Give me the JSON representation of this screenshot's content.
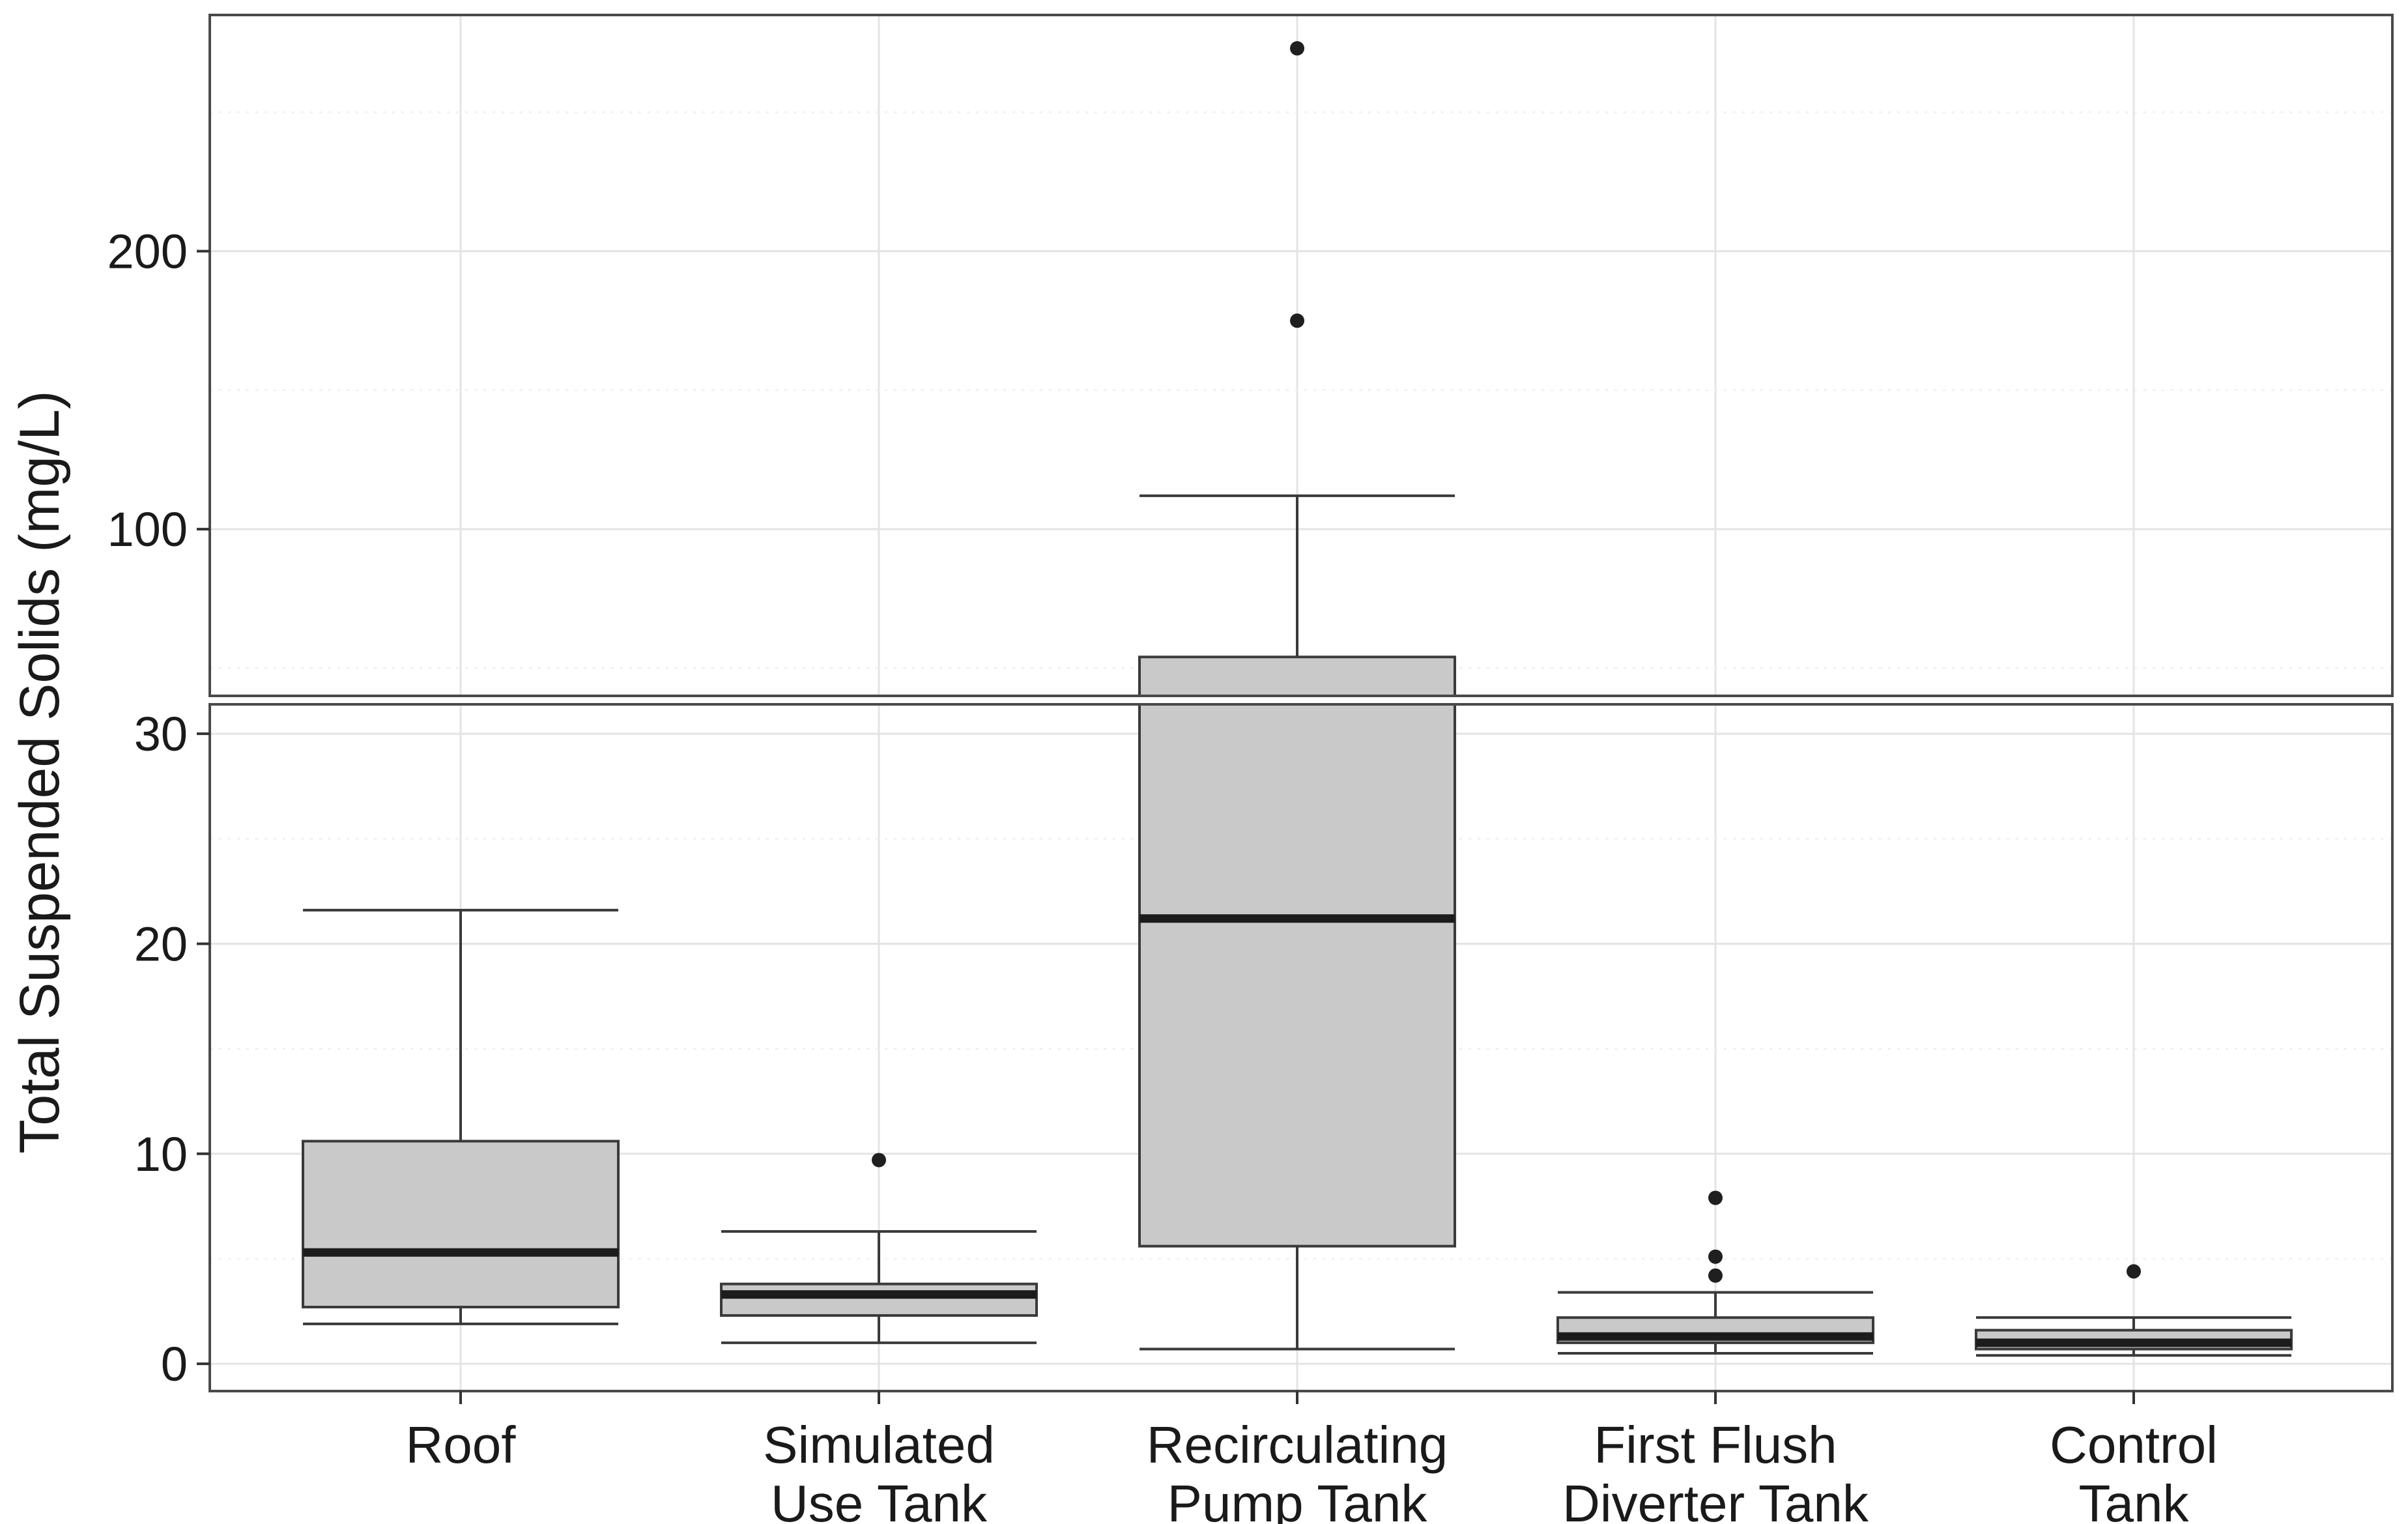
{
  "chart_data": {
    "type": "boxplot",
    "title": "",
    "xlabel": "",
    "ylabel": "Total Suspended Solids (mg/L)",
    "grid": "major+minor",
    "legend_position": "none",
    "y_axis": {
      "axis_break": true,
      "panels": [
        {
          "id": "upper",
          "range": [
            40,
            285
          ],
          "major_ticks": [
            100,
            200
          ],
          "minor_ticks": [
            50,
            150,
            250
          ]
        },
        {
          "id": "lower",
          "range": [
            -1.3,
            31.4
          ],
          "major_ticks": [
            0,
            10,
            20,
            30
          ],
          "minor_ticks": [
            5,
            15,
            25
          ]
        }
      ]
    },
    "categories": [
      {
        "label": "Roof",
        "lines": [
          "Roof"
        ]
      },
      {
        "label": "Simulated Use Tank",
        "lines": [
          "Simulated",
          "Use Tank"
        ]
      },
      {
        "label": "Recirculating Pump Tank",
        "lines": [
          "Recirculating",
          "Pump Tank"
        ]
      },
      {
        "label": "First Flush Diverter Tank",
        "lines": [
          "First Flush",
          "Diverter Tank"
        ]
      },
      {
        "label": "Control Tank",
        "lines": [
          "Control",
          "Tank"
        ]
      }
    ],
    "series": [
      {
        "category": "Roof",
        "whisker_low": 1.9,
        "q1": 2.7,
        "median": 5.3,
        "q3": 10.6,
        "whisker_high": 21.6,
        "outliers": []
      },
      {
        "category": "Simulated Use Tank",
        "whisker_low": 1.0,
        "q1": 2.3,
        "median": 3.3,
        "q3": 3.8,
        "whisker_high": 6.3,
        "outliers": [
          9.7
        ]
      },
      {
        "category": "Recirculating Pump Tank",
        "whisker_low": 0.7,
        "q1": 5.6,
        "median": 21.2,
        "q3": 54,
        "whisker_high": 112,
        "outliers": [
          175,
          273
        ]
      },
      {
        "category": "First Flush Diverter Tank",
        "whisker_low": 0.5,
        "q1": 1.0,
        "median": 1.3,
        "q3": 2.2,
        "whisker_high": 3.4,
        "outliers": [
          4.2,
          5.1,
          7.9
        ]
      },
      {
        "category": "Control Tank",
        "whisker_low": 0.4,
        "q1": 0.7,
        "median": 1.0,
        "q3": 1.6,
        "whisker_high": 2.2,
        "outliers": [
          4.4
        ]
      }
    ]
  },
  "colors": {
    "background": "#ffffff",
    "box_fill": "#c9c9c9",
    "box_stroke": "#3a3a3a",
    "median": "#1c1c1c",
    "whisker": "#3a3a3a",
    "outlier": "#1f1f1f",
    "panel_border": "#4a4a4a",
    "grid_major": "#e4e4e4",
    "grid_minor": "#efefef",
    "tick_mark": "#333333",
    "text": "#1a1a1a"
  }
}
